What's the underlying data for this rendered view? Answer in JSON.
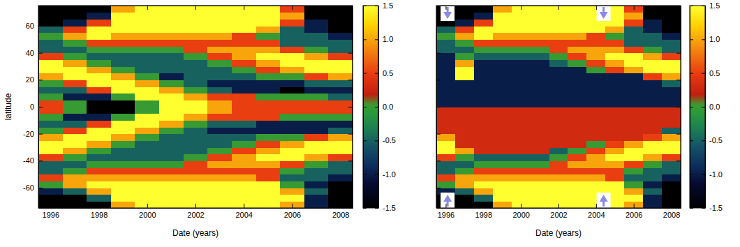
{
  "chart_data": [
    {
      "type": "heatmap",
      "xlabel": "Date (years)",
      "ylabel": "latitude",
      "x": [
        1996,
        1997,
        1998,
        1999,
        2000,
        2001,
        2002,
        2003,
        2004,
        2005,
        2006,
        2007,
        2008
      ],
      "y": [
        -72.5,
        -67.5,
        -62.5,
        -57.5,
        -52.5,
        -47.5,
        -42.5,
        -37.5,
        -32.5,
        -27.5,
        -22.5,
        -17.5,
        -12.5,
        -7.5,
        -2.5,
        2.5,
        7.5,
        12.5,
        17.5,
        22.5,
        27.5,
        32.5,
        37.5,
        42.5,
        47.5,
        52.5,
        57.5,
        62.5,
        67.5,
        72.5
      ],
      "z": [
        [
          -1.5,
          -1.5,
          -1.5,
          1,
          1.5,
          1.5,
          1.5,
          1.5,
          1.5,
          1.5,
          1,
          -1,
          -1.5
        ],
        [
          -1.5,
          -1.5,
          -0.5,
          1.5,
          1.5,
          1.5,
          1.5,
          1.5,
          1.5,
          1.5,
          1.5,
          -1,
          -1.5
        ],
        [
          -1,
          -0.5,
          1,
          1.5,
          1.5,
          1.5,
          1.5,
          1.5,
          1.5,
          1.5,
          1,
          -0.5,
          -1.5
        ],
        [
          0,
          1,
          1.5,
          1.5,
          1.5,
          1.5,
          1.5,
          1.5,
          1.5,
          1.5,
          0,
          -1,
          -1.5
        ],
        [
          0.5,
          1,
          1,
          1,
          1,
          1,
          1,
          1,
          1,
          0.5,
          -0.5,
          -0.5,
          -1
        ],
        [
          -0.5,
          0,
          0.5,
          0.5,
          0.5,
          0.5,
          0.5,
          0.5,
          0.5,
          0.5,
          0,
          -0.5,
          -0.5
        ],
        [
          -0.5,
          -0.5,
          0,
          0,
          0,
          0,
          0.5,
          1,
          1,
          1,
          0.5,
          0,
          -0.5
        ],
        [
          0.5,
          0,
          -0.5,
          -0.5,
          -0.5,
          -0.5,
          0,
          0.5,
          1,
          1.5,
          1.5,
          1,
          0.5
        ],
        [
          1.5,
          1,
          0,
          -0.5,
          -0.5,
          -0.5,
          -0.5,
          0,
          0.5,
          1,
          1.5,
          1.5,
          1.5
        ],
        [
          1.5,
          1.5,
          1,
          0,
          -0.5,
          -0.5,
          -0.5,
          -0.5,
          0,
          0.5,
          1,
          1.5,
          1.5
        ],
        [
          1,
          1.5,
          1.5,
          1,
          0,
          -0.5,
          -0.5,
          -0.5,
          -0.5,
          0,
          0,
          0.5,
          1
        ],
        [
          0,
          0.5,
          1.5,
          1.5,
          1,
          0,
          -0.5,
          -1,
          -1,
          -1,
          -1,
          -1,
          -0.5
        ],
        [
          -0.5,
          -0.5,
          0.5,
          1.5,
          1.5,
          1,
          0,
          -0.5,
          -0.5,
          -1,
          -1,
          -1,
          -1
        ],
        [
          0,
          -1,
          -1,
          0,
          1.5,
          1.5,
          1,
          0.5,
          0.5,
          0.5,
          0,
          0,
          0
        ],
        [
          0.5,
          0,
          -1.5,
          -1.5,
          0,
          1.5,
          1.5,
          1,
          0.5,
          0.5,
          0.5,
          0.5,
          0.5
        ],
        [
          0.5,
          0,
          -1.5,
          -1.5,
          0,
          1.5,
          1.5,
          1,
          0.5,
          0.5,
          0.5,
          0.5,
          0.5
        ],
        [
          0,
          -1,
          -1,
          0,
          1.5,
          1.5,
          1,
          0.5,
          0.5,
          0,
          0,
          0,
          -0.5
        ],
        [
          -0.5,
          -0.5,
          0.5,
          1.5,
          1.5,
          1,
          0,
          -0.5,
          -1,
          -1,
          -1.5,
          -1,
          -1
        ],
        [
          0,
          0.5,
          1.5,
          1.5,
          1,
          0,
          -0.5,
          -1,
          -1,
          -1,
          -1,
          -0.5,
          -0.5
        ],
        [
          1,
          1.5,
          1.5,
          1,
          0,
          -1,
          -0.5,
          -0.5,
          -0.5,
          0,
          0,
          0.5,
          1
        ],
        [
          1.5,
          1.5,
          1,
          0,
          -0.5,
          -0.5,
          -0.5,
          -0.5,
          0,
          0.5,
          1,
          1.5,
          1.5
        ],
        [
          1.5,
          1,
          0,
          -0.5,
          -0.5,
          -0.5,
          -0.5,
          0,
          0.5,
          1,
          1.5,
          1.5,
          1.5
        ],
        [
          0.5,
          0,
          -0.5,
          -0.5,
          -0.5,
          -0.5,
          0,
          0.5,
          1,
          1.5,
          1.5,
          1,
          0.5
        ],
        [
          -0.5,
          -0.5,
          0,
          0,
          0,
          0,
          0.5,
          1,
          1,
          1,
          0.5,
          0,
          -0.5
        ],
        [
          -0.5,
          0,
          0.5,
          0.5,
          0.5,
          0.5,
          0.5,
          0.5,
          0.5,
          0.5,
          -0.5,
          -0.5,
          -0.5
        ],
        [
          0,
          1,
          1.5,
          1,
          1,
          1,
          1,
          1,
          0.5,
          0,
          -0.5,
          -0.5,
          -1
        ],
        [
          -0.5,
          0.5,
          1.5,
          1.5,
          1.5,
          1.5,
          1.5,
          1.5,
          1.5,
          1,
          -0.5,
          -1,
          -1.5
        ],
        [
          -1.5,
          -1,
          0.5,
          1.5,
          1.5,
          1.5,
          1.5,
          1.5,
          1.5,
          1.5,
          0.5,
          -1,
          -1.5
        ],
        [
          -1.5,
          -1.5,
          -1,
          1.5,
          1.5,
          1.5,
          1.5,
          1.5,
          1.5,
          1.5,
          1,
          -1.5,
          -1.5
        ],
        [
          -1.5,
          -1.5,
          -1.5,
          1,
          1.5,
          1.5,
          1.5,
          1.5,
          1.5,
          1.5,
          0.5,
          -1.5,
          -1.5
        ]
      ],
      "xlim": [
        1995.5,
        2008.5
      ],
      "ylim": [
        -75,
        75
      ],
      "xticks": [
        1996,
        1998,
        2000,
        2002,
        2004,
        2006,
        2008
      ],
      "yticks": [
        -60,
        -40,
        -20,
        0,
        20,
        40,
        60
      ],
      "zlim": [
        -1.5,
        1.5
      ],
      "zticks": [
        -1.5,
        {
          "value": -1,
          "label": "-1.0"
        },
        -0.5,
        {
          "value": 0,
          "label": "0.0"
        },
        0.5,
        {
          "value": 1,
          "label": "1.0"
        },
        1.5
      ]
    },
    {
      "type": "heatmap",
      "xlabel": "Date (years)",
      "tick_labels": "x",
      "x": [
        1996,
        1997,
        1998,
        1999,
        2000,
        2001,
        2002,
        2003,
        2004,
        2005,
        2006,
        2007,
        2008
      ],
      "y": [
        -72.5,
        -67.5,
        -62.5,
        -57.5,
        -52.5,
        -47.5,
        -42.5,
        -37.5,
        -32.5,
        -27.5,
        -22.5,
        -17.5,
        -12.5,
        -7.5,
        -2.5,
        2.5,
        7.5,
        12.5,
        17.5,
        22.5,
        27.5,
        32.5,
        37.5,
        42.5,
        47.5,
        52.5,
        57.5,
        62.5,
        67.5,
        72.5
      ],
      "z": [
        [
          -1.5,
          -1.5,
          -1.5,
          1,
          1.5,
          1.5,
          1.5,
          1.5,
          1.5,
          1.5,
          1,
          -1,
          -1.5
        ],
        [
          -1.5,
          -1.5,
          -0.5,
          1.5,
          1.5,
          1.5,
          1.5,
          1.5,
          1.5,
          1.5,
          1.5,
          -1,
          -1.5
        ],
        [
          -1,
          -0.5,
          1,
          1.5,
          1.5,
          1.5,
          1.5,
          1.5,
          1.5,
          1.5,
          1,
          -0.5,
          -1.5
        ],
        [
          0,
          1,
          1.5,
          1.5,
          1.5,
          1.5,
          1.5,
          1.5,
          1.5,
          1.5,
          0,
          -1,
          -1.5
        ],
        [
          0.5,
          1,
          1,
          1,
          1,
          1,
          1,
          1,
          1,
          0.5,
          -0.5,
          -0.5,
          -1
        ],
        [
          -0.5,
          0,
          0.5,
          0.5,
          0.5,
          0.5,
          0.5,
          0.5,
          0.5,
          0.5,
          0,
          -0.5,
          -0.5
        ],
        [
          -0.5,
          -0.5,
          0,
          0,
          0,
          0,
          0.5,
          1,
          1,
          1,
          0.5,
          0,
          -0.5
        ],
        [
          0.5,
          0,
          -0.5,
          -0.5,
          -0.5,
          -0.5,
          0,
          0.5,
          1,
          1.5,
          1.5,
          1,
          0.5
        ],
        [
          1.5,
          1,
          0.3,
          0.3,
          0.3,
          0.3,
          -0.5,
          0,
          0.5,
          1,
          1.5,
          1.5,
          1.5
        ],
        [
          1.5,
          0.3,
          0.3,
          0.3,
          0.3,
          0.3,
          0.3,
          0.3,
          0,
          0.5,
          1,
          1.5,
          1.5
        ],
        [
          1,
          0.3,
          0.3,
          0.3,
          0.3,
          0.3,
          0.3,
          0.3,
          0.3,
          0.3,
          0.3,
          0.5,
          1
        ],
        [
          0.3,
          0.3,
          0.3,
          0.3,
          0.3,
          0.3,
          0.3,
          0.3,
          0.3,
          0.3,
          0.3,
          0.3,
          -0.5
        ],
        [
          0.3,
          0.3,
          0.3,
          0.3,
          0.3,
          0.3,
          0.3,
          0.3,
          0.3,
          0.3,
          0.3,
          0.3,
          0.3
        ],
        [
          0.3,
          0.3,
          0.3,
          0.3,
          0.3,
          0.3,
          0.3,
          0.3,
          0.3,
          0.3,
          0.3,
          0.3,
          0.3
        ],
        [
          0.3,
          0.3,
          0.3,
          0.3,
          0.3,
          0.3,
          0.3,
          0.3,
          0.3,
          0.3,
          0.3,
          0.3,
          0.3
        ],
        [
          -1,
          -1,
          -1,
          -1,
          -1,
          -1,
          -1,
          -1,
          -1,
          -1,
          -1,
          -1,
          -1
        ],
        [
          -1,
          -1,
          -1,
          -1,
          -1,
          -1,
          -1,
          -1,
          -1,
          -1,
          -1,
          -1,
          -1
        ],
        [
          -1,
          -1,
          -1,
          -1,
          -1,
          -1,
          -1,
          -1,
          -1,
          -1,
          -1,
          -1,
          -1
        ],
        [
          -1,
          -1,
          -1,
          -1,
          -1,
          -1,
          -1,
          -1,
          -1,
          -1,
          -1,
          -1,
          -0.5
        ],
        [
          -1,
          1.5,
          -1,
          -1,
          -1,
          -1,
          -1,
          -1,
          -1,
          -1,
          -1,
          0.5,
          1
        ],
        [
          -1,
          1.5,
          -1,
          -1,
          -1,
          -1,
          -1,
          -1,
          0,
          0.5,
          1,
          1.5,
          1.5
        ],
        [
          -1,
          1,
          -1,
          -1,
          -1,
          -1,
          -0.5,
          0,
          0.5,
          1,
          1.5,
          1.5,
          1.5
        ],
        [
          -1,
          0,
          -0.5,
          -0.5,
          -0.5,
          -0.5,
          0,
          0.5,
          1,
          1.5,
          1.5,
          1,
          0.5
        ],
        [
          -0.5,
          -0.5,
          0,
          0,
          0,
          0,
          0.5,
          1,
          1,
          1,
          0.5,
          0,
          -0.5
        ],
        [
          -0.5,
          0,
          0.5,
          0.5,
          0.5,
          0.5,
          0.5,
          0.5,
          0.5,
          0.5,
          -0.5,
          -0.5,
          -0.5
        ],
        [
          0,
          1,
          1.5,
          1,
          1,
          1,
          1,
          1,
          0.5,
          0,
          -0.5,
          -0.5,
          -1
        ],
        [
          -0.5,
          0.5,
          1.5,
          1.5,
          1.5,
          1.5,
          1.5,
          1.5,
          1.5,
          1,
          -0.5,
          -1,
          -1.5
        ],
        [
          -1.5,
          -1,
          0.5,
          1.5,
          1.5,
          1.5,
          1.5,
          1.5,
          1.5,
          1.5,
          0.5,
          -1,
          -1.5
        ],
        [
          -1.5,
          -1.5,
          -1,
          1.5,
          1.5,
          1.5,
          1.5,
          1.5,
          1.5,
          1.5,
          1,
          -1.5,
          -1.5
        ],
        [
          -1.5,
          -1.5,
          -1.5,
          1,
          1.5,
          1.5,
          1.5,
          1.5,
          1.5,
          1.5,
          0.5,
          -1.5,
          -1.5
        ]
      ],
      "arrows_x": [
        1996.1,
        2004.4
      ],
      "xlim": [
        1995.5,
        2008.5
      ],
      "ylim": [
        -75,
        75
      ],
      "xticks": [
        1996,
        1998,
        2000,
        2002,
        2004,
        2006,
        2008
      ],
      "yticks": [
        -60,
        -40,
        -20,
        0,
        20,
        40,
        60
      ],
      "zlim": [
        -1.5,
        1.5
      ],
      "zticks": [
        -1.5,
        {
          "value": -1,
          "label": "-1.0"
        },
        -0.5,
        {
          "value": 0,
          "label": "0.0"
        },
        0.5,
        {
          "value": 1,
          "label": "1.0"
        },
        1.5
      ]
    }
  ]
}
